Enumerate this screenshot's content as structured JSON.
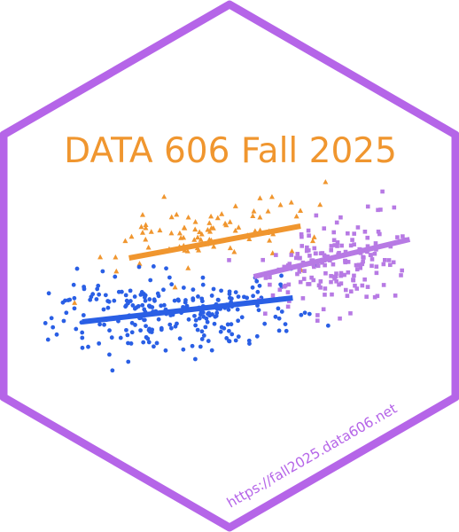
{
  "sticker": {
    "title": "DATA 606 Fall 2025",
    "url": "https://fall2025.data606.net"
  },
  "colors": {
    "border": "#b565e8",
    "background": "#ffffff",
    "title": "#f0962f",
    "url": "#b565e8",
    "orange": "#f0962f",
    "blue": "#2a5fe5",
    "purple": "#b77ae4"
  },
  "icon": "scatterplot-with-regression-lines",
  "chart_data": {
    "type": "scatter",
    "title": "",
    "xlabel": "",
    "ylabel": "",
    "xlim": [
      0,
      10
    ],
    "ylim": [
      0,
      10
    ],
    "grid": false,
    "legend": "none",
    "series": [
      {
        "marker": "triangle",
        "color": "#f0962f",
        "center": [
          4.5,
          7.1
        ],
        "spread": [
          1.2,
          0.7
        ],
        "n": 85,
        "points": [
          [
            3.3,
            8.6
          ],
          [
            7.3,
            8.3
          ]
        ],
        "fit": {
          "x": [
            2.4,
            6.8
          ],
          "y": [
            6.3,
            7.5
          ]
        }
      },
      {
        "marker": "circle",
        "color": "#2a5fe5",
        "center": [
          3.5,
          4.3
        ],
        "spread": [
          1.5,
          0.7
        ],
        "n": 260,
        "points": [
          [
            1.2,
            3.3
          ],
          [
            4.1,
            2.5
          ]
        ],
        "fit": {
          "x": [
            1.2,
            6.6
          ],
          "y": [
            3.9,
            4.8
          ]
        }
      },
      {
        "marker": "square",
        "color": "#b77ae4",
        "center": [
          7.6,
          6.0
        ],
        "spread": [
          1.0,
          0.8
        ],
        "n": 180,
        "points": [
          [
            8.9,
            8.8
          ],
          [
            9.2,
            8.2
          ]
        ],
        "fit": {
          "x": [
            5.6,
            9.6
          ],
          "y": [
            5.6,
            7.0
          ]
        }
      }
    ]
  }
}
